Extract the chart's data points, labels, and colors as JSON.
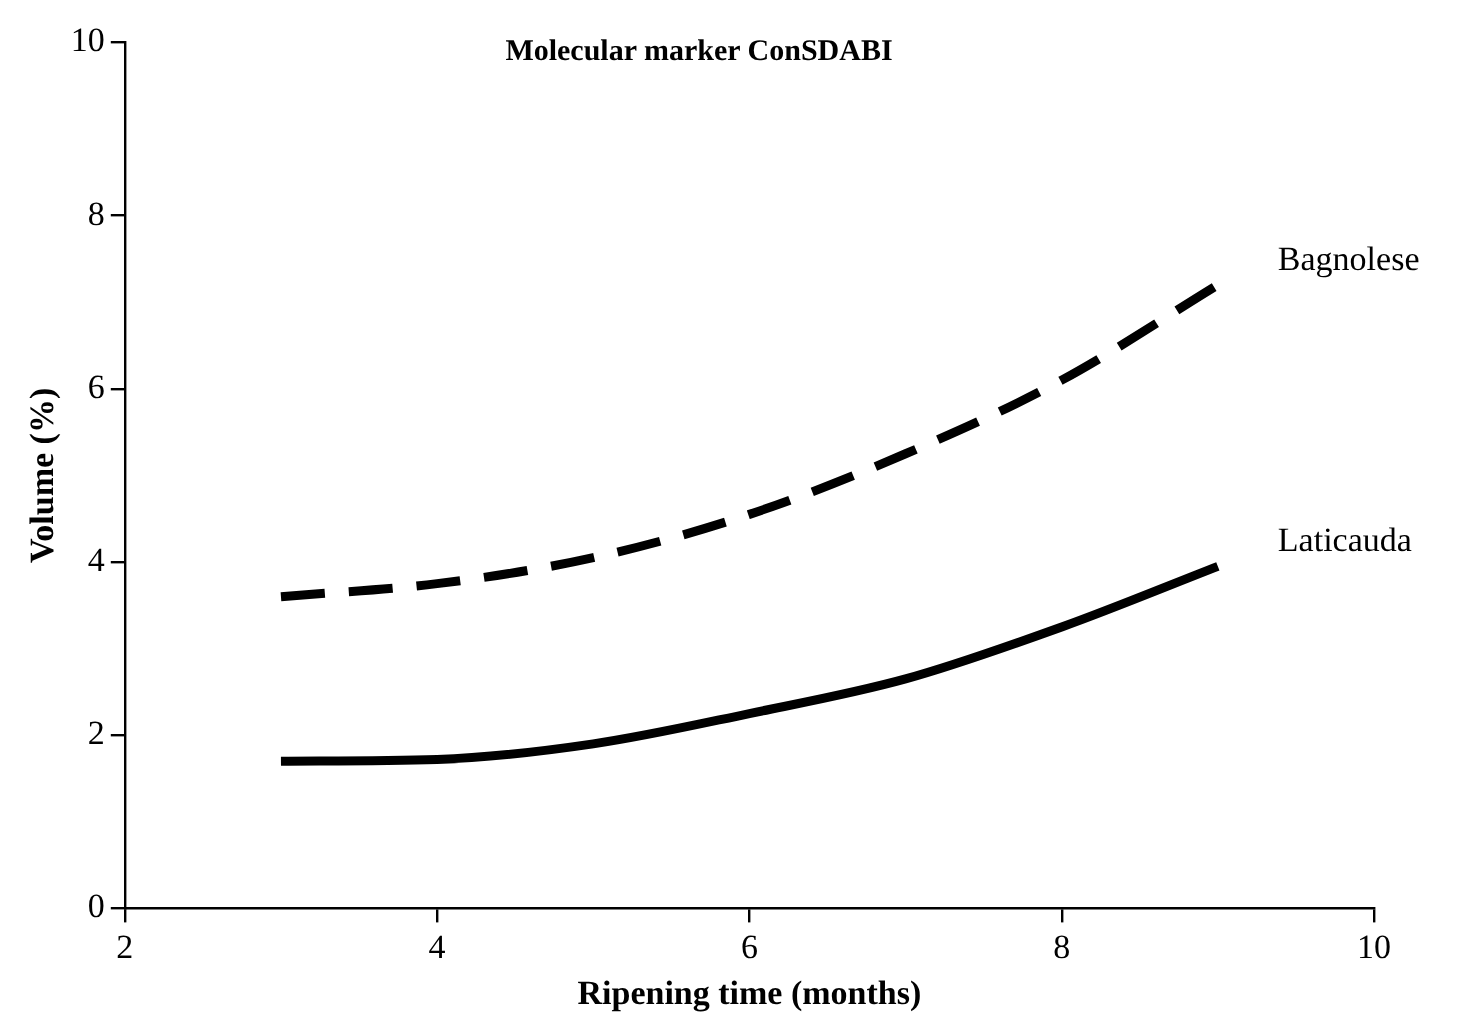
{
  "chart_data": {
    "type": "line",
    "title": "Molecular marker ConSDABI",
    "xlabel": "Ripening time (months)",
    "ylabel": "Volume (%)",
    "x": [
      3,
      4,
      5,
      6,
      7,
      8,
      9
    ],
    "series": [
      {
        "name": "Bagnolese",
        "color": "#000000",
        "line_style": "dashed",
        "values": [
          3.6,
          3.75,
          4.05,
          4.55,
          5.25,
          6.1,
          7.2
        ]
      },
      {
        "name": "Laticauda",
        "color": "#000000",
        "line_style": "solid",
        "values": [
          1.7,
          1.72,
          1.9,
          2.25,
          2.65,
          3.25,
          3.95
        ]
      }
    ],
    "xlim": [
      2,
      10
    ],
    "xticks": [
      2,
      4,
      6,
      8,
      10
    ],
    "ylim": [
      0,
      10
    ],
    "yticks": [
      0,
      2,
      4,
      6,
      8,
      10
    ],
    "grid": false,
    "legend": false,
    "marker": "none"
  }
}
